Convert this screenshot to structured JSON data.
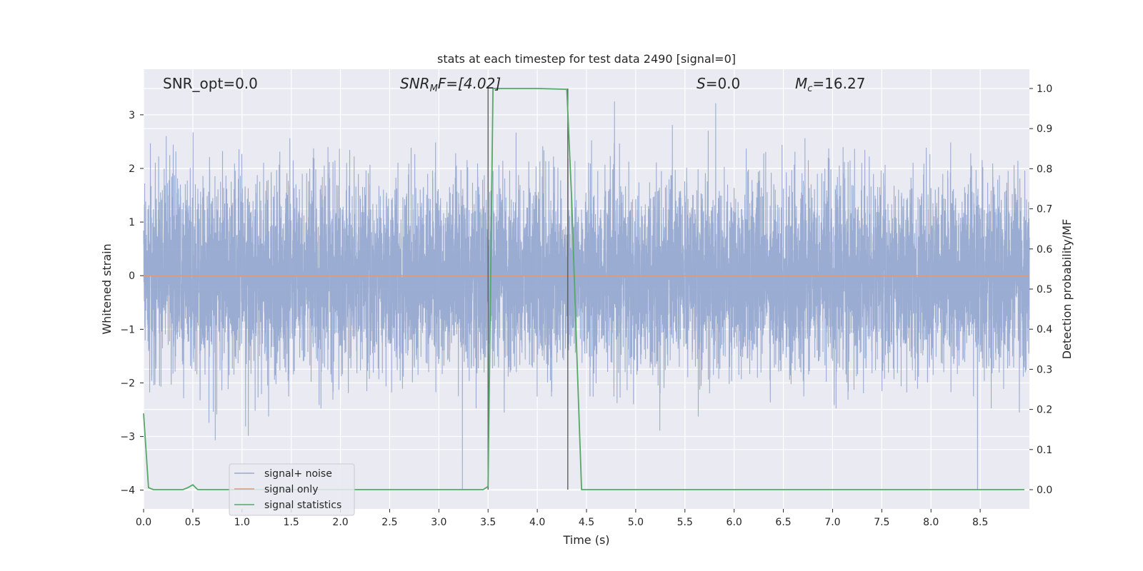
{
  "chart_data": {
    "type": "line",
    "title": "stats at each timestep for test data 2490 [signal=0]",
    "xlabel": "Time (s)",
    "ylabel_left": "Whitened strain",
    "ylabel_right": "Detection probability/MF",
    "xlim": [
      0.0,
      9.0
    ],
    "ylim_left": [
      -4.35,
      3.85
    ],
    "ylim_right": [
      -0.048,
      1.048
    ],
    "x_ticks": [
      "0.0",
      "0.5",
      "1.0",
      "1.5",
      "2.0",
      "2.5",
      "3.0",
      "3.5",
      "4.0",
      "4.5",
      "5.0",
      "5.5",
      "6.0",
      "6.5",
      "7.0",
      "7.5",
      "8.0",
      "8.5"
    ],
    "y_left_ticks": [
      "3",
      "2",
      "1",
      "0",
      "−1",
      "−2",
      "−3",
      "−4"
    ],
    "y_right_ticks": [
      "1.0",
      "0.9",
      "0.8",
      "0.7",
      "0.6",
      "0.5",
      "0.4",
      "0.3",
      "0.2",
      "0.1",
      "0.0"
    ],
    "grid": true,
    "legend_position": "lower-left",
    "annotations": {
      "snr_opt": "SNR_opt=0.0",
      "snr_mf_main": "SNR",
      "snr_mf_sub": "M",
      "snr_mf_rest": "F=[4.02]",
      "s_main": "S",
      "s_rest": "=0.0",
      "mc_main": "M",
      "mc_sub": "c",
      "mc_rest": "=16.27"
    },
    "vertical_markers_x": [
      3.5,
      4.31
    ],
    "series": [
      {
        "name": "signal+ noise",
        "color": "#97a9d0",
        "axis": "left",
        "description_of_values": "dense whitened noise, approximately within [-4.0, 3.5]"
      },
      {
        "name": "signal only",
        "color": "#dd9a7a",
        "axis": "left",
        "x": [
          0.0,
          9.0
        ],
        "values": [
          0.0,
          0.0
        ]
      },
      {
        "name": "signal statistics",
        "color": "#55a868",
        "axis": "right",
        "x": [
          0.0,
          0.05,
          0.1,
          0.15,
          0.4,
          0.45,
          0.5,
          0.55,
          1.0,
          3.45,
          3.5,
          3.55,
          4.0,
          4.3,
          4.35,
          4.4,
          4.45,
          5.0,
          8.95
        ],
        "values": [
          0.19,
          0.005,
          0.0,
          0.0,
          0.0,
          0.005,
          0.012,
          0.0,
          0.0,
          0.0,
          0.008,
          1.0,
          1.0,
          0.998,
          0.72,
          0.35,
          0.0,
          0.0,
          0.0
        ]
      }
    ]
  }
}
